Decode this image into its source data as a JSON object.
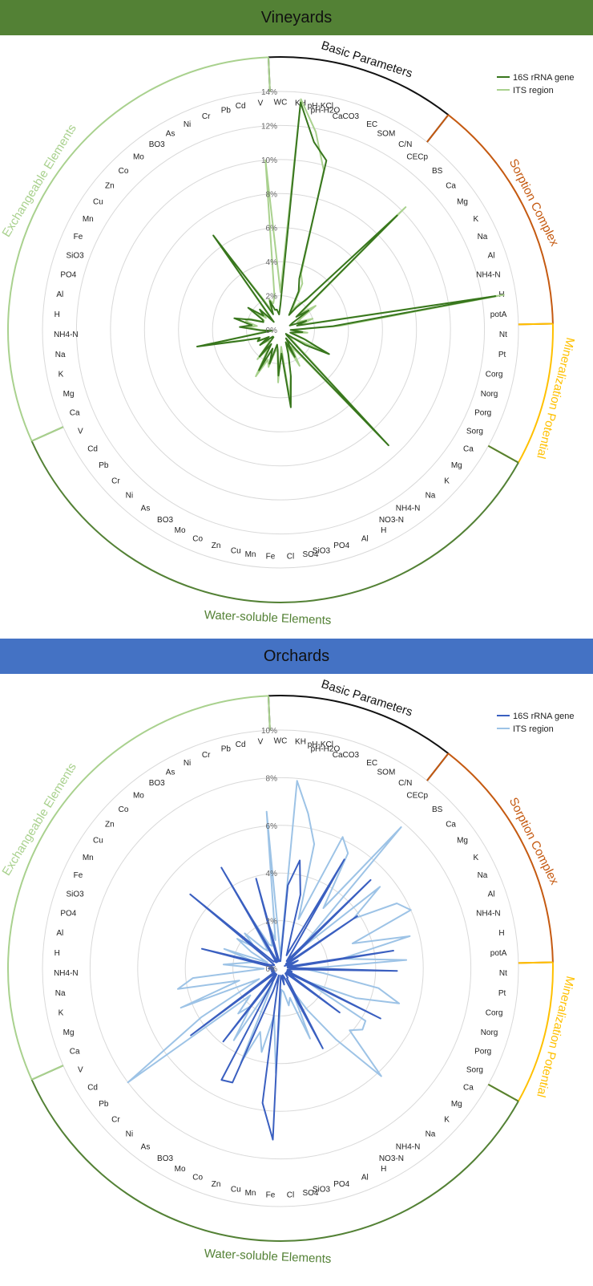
{
  "chart_data": [
    {
      "type": "radar",
      "title": "Vineyards",
      "header_color": "#538135",
      "max": 14,
      "rings": [
        0,
        2,
        4,
        6,
        8,
        10,
        12,
        14
      ],
      "ring_labels": [
        "0%",
        "2%",
        "4%",
        "6%",
        "8%",
        "10%",
        "12%",
        "14%"
      ],
      "legend_position": "top-right",
      "categories": [
        "WC",
        "KH",
        "pH-KCl",
        "pH-H2O",
        "CaCO3",
        "EC",
        "SOM",
        "C/N",
        "CECp",
        "BS",
        "Ca",
        "Mg",
        "K",
        "Na",
        "Al",
        "NH4-N",
        "H",
        "potA",
        "Nt",
        "Pt",
        "Corg",
        "Norg",
        "Porg",
        "Sorg",
        "Ca",
        "Mg",
        "K",
        "Na",
        "NH4-N",
        "NO3-N",
        "H",
        "Al",
        "PO4",
        "SiO3",
        "SO4",
        "Cl",
        "Fe",
        "Mn",
        "Cu",
        "Zn",
        "Co",
        "Mo",
        "BO3",
        "As",
        "Ni",
        "Cr",
        "Pb",
        "Cd",
        "V",
        "Ca",
        "Mg",
        "K",
        "Na",
        "NH4-N",
        "H",
        "Al",
        "PO4",
        "SiO3",
        "Fe",
        "Mn",
        "Cu",
        "Zn",
        "Co",
        "Mo",
        "BO3",
        "As",
        "Ni",
        "Cr",
        "Pb",
        "Cd",
        "V"
      ],
      "groups": [
        {
          "name": "Basic Parameters",
          "count": 8,
          "color": "#111111"
        },
        {
          "name": "Sorption Complex",
          "count": 10,
          "color": "#c55a11"
        },
        {
          "name": "Mineralization Potential",
          "count": 6,
          "color": "#ffc000"
        },
        {
          "name": "Water-soluble Elements",
          "count": 25,
          "color": "#538135"
        },
        {
          "name": "Exchangeable Elements",
          "count": 22,
          "color": "#a9d18e"
        }
      ],
      "series": [
        {
          "name": "16S rRNA gene",
          "color": "#38761d",
          "values": [
            1.5,
            13.4,
            11.2,
            10.3,
            3.2,
            2.5,
            1.0,
            1.6,
            2.4,
            9.6,
            1.2,
            2.0,
            0.8,
            0.6,
            1.6,
            1.0,
            12.8,
            3.1,
            0.6,
            1.3,
            0.8,
            0.6,
            1.5,
            3.2,
            1.7,
            0.4,
            0.5,
            9.3,
            1.5,
            0.6,
            1.8,
            0.8,
            1.5,
            2.8,
            4.6,
            1.4,
            2.7,
            1.2,
            0.9,
            2.1,
            1.2,
            2.7,
            1.0,
            2.0,
            0.6,
            0.6,
            1.5,
            0.8,
            1.5,
            1.3,
            2.2,
            5.0,
            0.5,
            1.2,
            2.4,
            1.7,
            2.8,
            1.8,
            1.1,
            1.2,
            2.3,
            1.3,
            1.7,
            0.6,
            6.8,
            2.0,
            1.0,
            1.8,
            1.2,
            1.2,
            0.9
          ]
        },
        {
          "name": "ITS region",
          "color": "#a9d18e",
          "values": [
            2.2,
            13.6,
            11.8,
            9.7,
            3.5,
            3.0,
            1.3,
            1.9,
            2.2,
            10.3,
            1.5,
            2.5,
            1.4,
            1.1,
            2.0,
            1.2,
            13.3,
            3.5,
            0.7,
            1.6,
            0.9,
            0.8,
            1.6,
            2.9,
            1.0,
            0.7,
            0.9,
            8.7,
            1.9,
            1.2,
            2.4,
            1.1,
            1.6,
            2.7,
            4.1,
            1.0,
            3.1,
            1.3,
            1.2,
            2.3,
            1.9,
            3.1,
            1.3,
            2.2,
            0.9,
            1.0,
            1.5,
            0.9,
            1.5,
            1.4,
            2.1,
            4.4,
            0.8,
            1.1,
            2.0,
            1.4,
            2.1,
            2.0,
            1.2,
            1.1,
            1.9,
            1.1,
            1.4,
            0.9,
            6.3,
            2.3,
            1.3,
            1.9,
            1.6,
            2.0,
            10.0
          ]
        }
      ]
    },
    {
      "type": "radar",
      "title": "Orchards",
      "header_color": "#4472c4",
      "max": 10,
      "rings": [
        0,
        2,
        4,
        6,
        8,
        10
      ],
      "ring_labels": [
        "0%",
        "2%",
        "4%",
        "6%",
        "8%",
        "10%"
      ],
      "legend_position": "top-right",
      "categories": [
        "WC",
        "KH",
        "pH-KCl",
        "pH-H2O",
        "CaCO3",
        "EC",
        "SOM",
        "C/N",
        "CECp",
        "BS",
        "Ca",
        "Mg",
        "K",
        "Na",
        "Al",
        "NH4-N",
        "H",
        "potA",
        "Nt",
        "Pt",
        "Corg",
        "Norg",
        "Porg",
        "Sorg",
        "Ca",
        "Mg",
        "K",
        "Na",
        "NH4-N",
        "NO3-N",
        "H",
        "Al",
        "PO4",
        "SiO3",
        "SO4",
        "Cl",
        "Fe",
        "Mn",
        "Cu",
        "Zn",
        "Co",
        "Mo",
        "BO3",
        "As",
        "Ni",
        "Cr",
        "Pb",
        "Cd",
        "V",
        "Ca",
        "Mg",
        "K",
        "Na",
        "NH4-N",
        "H",
        "Al",
        "PO4",
        "SiO3",
        "Fe",
        "Mn",
        "Cu",
        "Zn",
        "Co",
        "Mo",
        "BO3",
        "As",
        "Ni",
        "Cr",
        "Pb",
        "Cd",
        "V"
      ],
      "groups": [
        {
          "name": "Basic Parameters",
          "count": 8,
          "color": "#111111"
        },
        {
          "name": "Sorption Complex",
          "count": 10,
          "color": "#c55a11"
        },
        {
          "name": "Mineralization Potential",
          "count": 6,
          "color": "#ffc000"
        },
        {
          "name": "Water-soluble Elements",
          "count": 25,
          "color": "#538135"
        },
        {
          "name": "Exchangeable Elements",
          "count": 22,
          "color": "#a9d18e"
        }
      ],
      "series": [
        {
          "name": "16S rRNA gene",
          "color": "#3a5fc0",
          "values": [
            0.3,
            3.5,
            4.6,
            3.2,
            1.0,
            0.6,
            5.3,
            0.8,
            0.4,
            5.3,
            0.3,
            3.9,
            0.2,
            0.8,
            0.5,
            0.3,
            4.8,
            0.3,
            4.9,
            0.4,
            0.3,
            0.5,
            0.3,
            4.7,
            0.3,
            3.1,
            0.3,
            0.3,
            0.5,
            0.5,
            3.8,
            0.4,
            0.3,
            0.7,
            0.4,
            0.3,
            7.2,
            5.7,
            0.3,
            1.0,
            5.2,
            5.3,
            0.3,
            3.9,
            0.3,
            0.3,
            4.7,
            0.3,
            0.3,
            0.4,
            0.3,
            0.4,
            0.3,
            0.5,
            0.3,
            0.4,
            3.4,
            0.4,
            0.3,
            0.3,
            0.5,
            4.9,
            0.4,
            0.4,
            0.3,
            4.9,
            0.3,
            0.3,
            3.9,
            0.3,
            0.3
          ]
        },
        {
          "name": "ITS region",
          "color": "#9dc3e6",
          "values": [
            0.5,
            7.9,
            6.6,
            5.4,
            2.2,
            6.1,
            5.6,
            3.1,
            7.8,
            1.1,
            5.4,
            3.7,
            5.6,
            6.0,
            3.2,
            5.6,
            2.6,
            5.3,
            1.0,
            1.8,
            4.2,
            5.2,
            3.4,
            1.2,
            4.2,
            4.3,
            3.9,
            6.2,
            3.8,
            2.1,
            1.0,
            3.2,
            1.3,
            1.6,
            1.0,
            0.9,
            4.4,
            2.0,
            3.6,
            2.8,
            4.3,
            0.7,
            3.6,
            2.0,
            2.6,
            1.7,
            8.0,
            3.9,
            1.0,
            4.5,
            1.8,
            4.4,
            3.7,
            0.7,
            2.4,
            1.5,
            1.1,
            2.5,
            0.6,
            1.4,
            2.2,
            1.4,
            2.1,
            1.1,
            0.9,
            2.7,
            1.1,
            1.0,
            1.9,
            1.2,
            6.6
          ]
        }
      ]
    }
  ]
}
